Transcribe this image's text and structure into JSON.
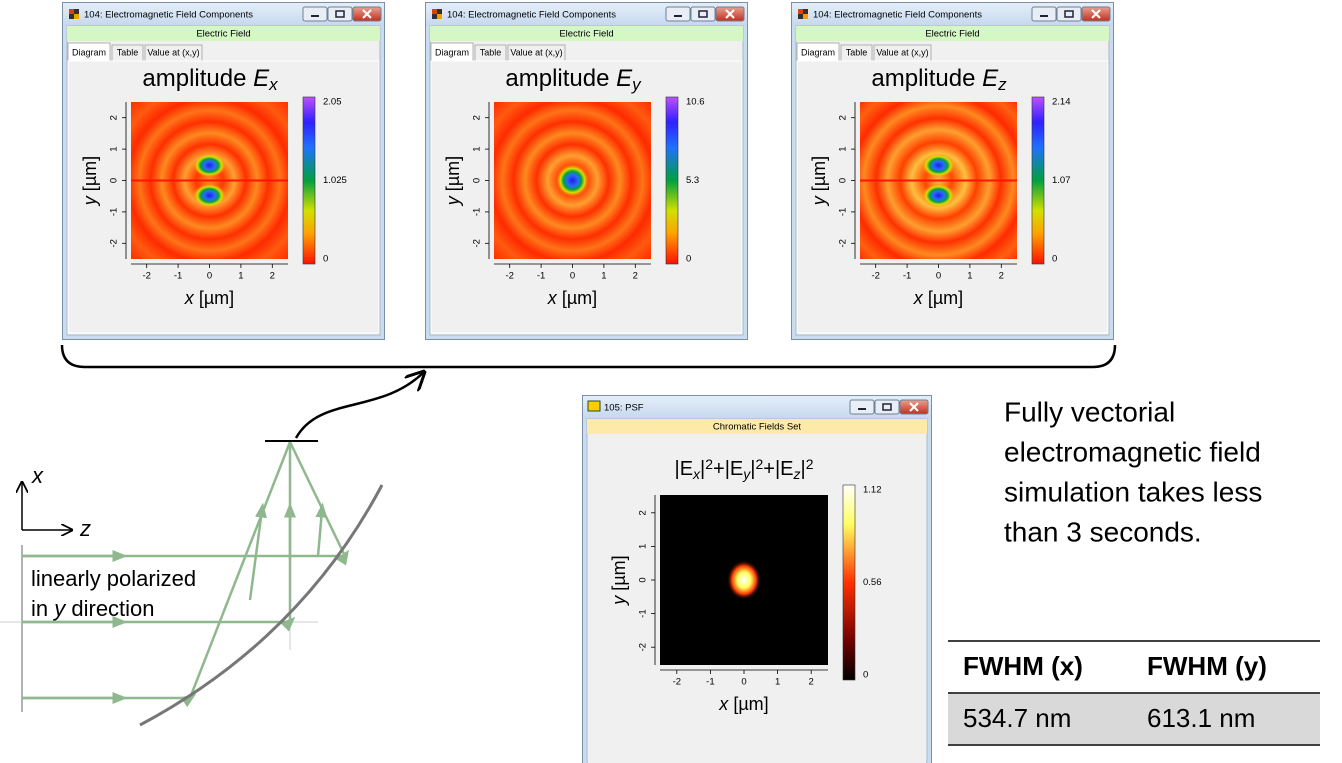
{
  "field_windows": [
    {
      "window_title": "104: Electromagnetic Field Components",
      "subtitle": "Electric Field",
      "tabs": [
        "Diagram",
        "Table",
        "Value at (x,y)"
      ],
      "plot_title": {
        "prefix": "amplitude",
        "symbol": "E",
        "subscript": "x"
      },
      "colorbar_labels": [
        "2.05",
        "1.025",
        "0"
      ],
      "x_ticks": [
        "-2",
        "-1",
        "0",
        "1",
        "2"
      ],
      "y_ticks": [
        "-2",
        "-1",
        "0",
        "1",
        "2"
      ],
      "x_label": {
        "var": "x",
        "unit": "[µm]"
      },
      "y_label": {
        "var": "y",
        "unit": "[µm]"
      }
    },
    {
      "window_title": "104: Electromagnetic Field Components",
      "subtitle": "Electric Field",
      "tabs": [
        "Diagram",
        "Table",
        "Value at (x,y)"
      ],
      "plot_title": {
        "prefix": "amplitude",
        "symbol": "E",
        "subscript": "y"
      },
      "colorbar_labels": [
        "10.6",
        "5.3",
        "0"
      ],
      "x_ticks": [
        "-2",
        "-1",
        "0",
        "1",
        "2"
      ],
      "y_ticks": [
        "-2",
        "-1",
        "0",
        "1",
        "2"
      ],
      "x_label": {
        "var": "x",
        "unit": "[µm]"
      },
      "y_label": {
        "var": "y",
        "unit": "[µm]"
      }
    },
    {
      "window_title": "104: Electromagnetic Field Components",
      "subtitle": "Electric Field",
      "tabs": [
        "Diagram",
        "Table",
        "Value at (x,y)"
      ],
      "plot_title": {
        "prefix": "amplitude",
        "symbol": "E",
        "subscript": "z"
      },
      "colorbar_labels": [
        "2.14",
        "1.07",
        "0"
      ],
      "x_ticks": [
        "-2",
        "-1",
        "0",
        "1",
        "2"
      ],
      "y_ticks": [
        "-2",
        "-1",
        "0",
        "1",
        "2"
      ],
      "x_label": {
        "var": "x",
        "unit": "[µm]"
      },
      "y_label": {
        "var": "y",
        "unit": "[µm]"
      }
    }
  ],
  "psf_window": {
    "window_title": "105: PSF",
    "subtitle": "Chromatic Fields Set",
    "plot_title": [
      "|E",
      "x",
      "|",
      "2",
      "+|E",
      "y",
      "|",
      "2",
      "+|E",
      "z",
      "|",
      "2"
    ],
    "colorbar_labels": [
      "1.12",
      "0.56",
      "0"
    ],
    "x_ticks": [
      "-2",
      "-1",
      "0",
      "1",
      "2"
    ],
    "y_ticks": [
      "-2",
      "-1",
      "0",
      "1",
      "2"
    ],
    "x_label": {
      "var": "x",
      "unit": "[µm]"
    },
    "y_label": {
      "var": "y",
      "unit": "[µm]"
    }
  },
  "diagram": {
    "axis_x": "x",
    "axis_z": "z",
    "polarization_line1": "linearly polarized",
    "polarization_line2": [
      "in",
      "y",
      "direction"
    ]
  },
  "description": [
    "Fully vectorial",
    "electromagnetic field",
    "simulation takes less",
    "than 3 seconds."
  ],
  "table": {
    "headers": [
      "FWHM (x)",
      "FWHM (y)"
    ],
    "rows": [
      [
        "534.7 nm",
        "613.1 nm"
      ]
    ]
  }
}
